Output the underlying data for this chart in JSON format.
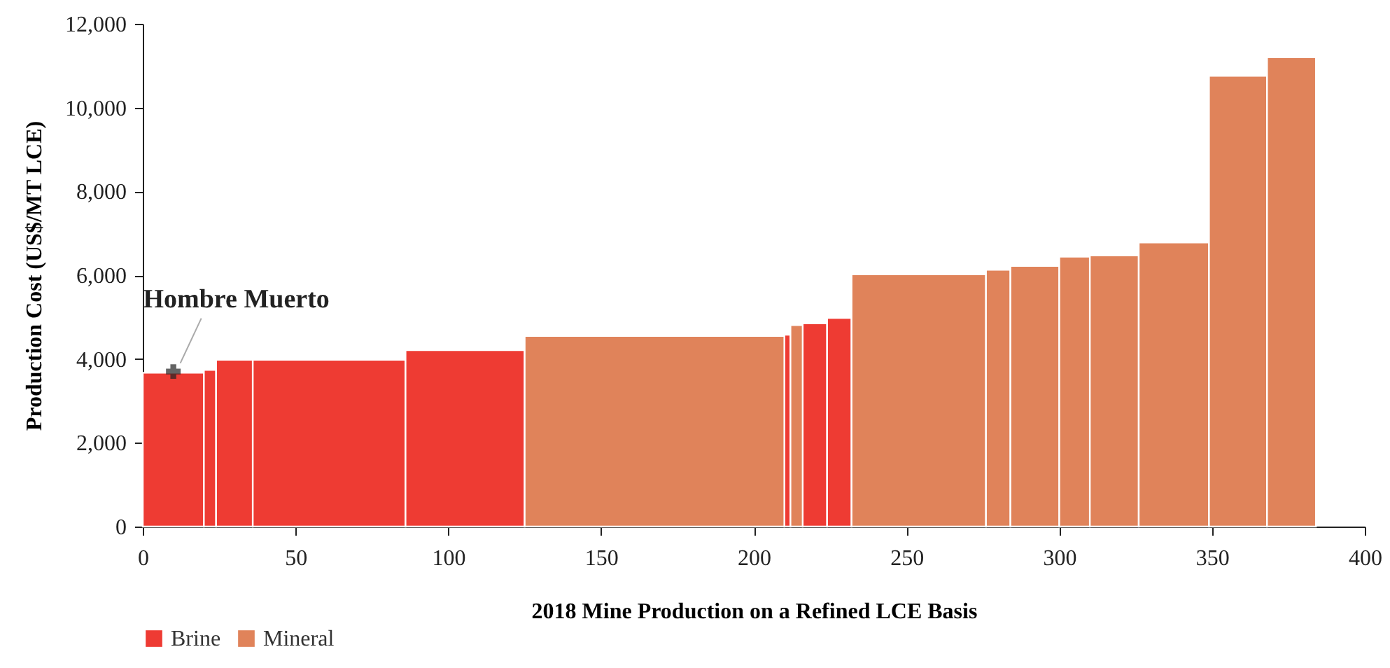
{
  "chart_data": {
    "type": "histogram",
    "xlabel": "2018 Mine Production on a Refined LCE Basis",
    "ylabel": "Production Cost (US$/MT LCE)",
    "bins": [
      0,
      20,
      24,
      36,
      86,
      125,
      210,
      212,
      216,
      224,
      232,
      276,
      284,
      300,
      310,
      326,
      349,
      368,
      384
    ],
    "series": [
      {
        "name": "Brine",
        "color": "#ee3b33",
        "values": [
          3670,
          3740,
          3980,
          3980,
          4210,
          null,
          4580,
          null,
          4850,
          4980,
          null,
          null,
          null,
          null,
          null,
          null,
          null,
          null
        ]
      },
      {
        "name": "Mineral",
        "color": "#e0835a",
        "values": [
          null,
          null,
          null,
          null,
          null,
          4550,
          null,
          4810,
          null,
          null,
          6020,
          6130,
          6220,
          6440,
          6470,
          6780,
          10760,
          11200
        ]
      }
    ],
    "xlim": [
      0,
      400
    ],
    "xticks": [
      0,
      50,
      100,
      150,
      200,
      250,
      300,
      350,
      400
    ],
    "ylim": [
      0,
      12000
    ],
    "yticks": [
      0,
      {
        "value": 2000,
        "label": "2,000"
      },
      {
        "value": 4000,
        "label": "4,000"
      },
      {
        "value": 6000,
        "label": "6,000"
      },
      {
        "value": 8000,
        "label": "8,000"
      },
      {
        "value": 10000,
        "label": "10,000"
      },
      {
        "value": 12000,
        "label": "12,000"
      }
    ],
    "legend": "bottom",
    "annotations": [
      {
        "text": "Hombre Muerto",
        "x": 10,
        "y": 3700
      }
    ]
  }
}
